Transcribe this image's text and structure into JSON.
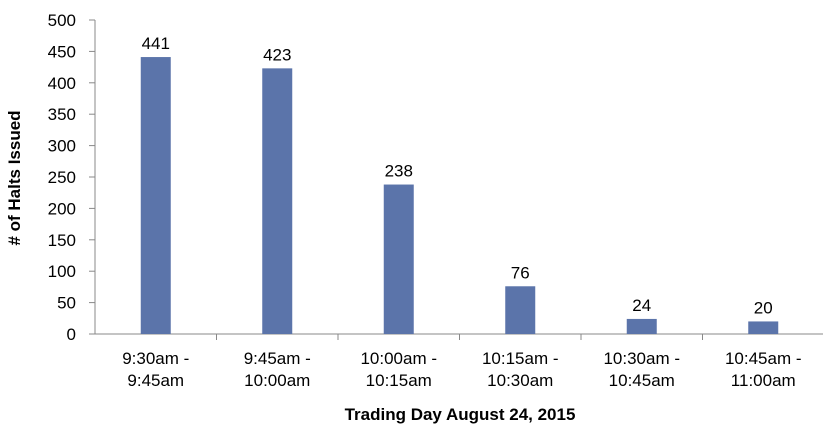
{
  "chart_data": {
    "type": "bar",
    "x_label": "Trading Day August 24, 2015",
    "y_label": "# of Halts Issued",
    "categories": [
      "9:30am -\n9:45am",
      "9:45am -\n10:00am",
      "10:00am -\n10:15am",
      "10:15am -\n10:30am",
      "10:30am -\n10:45am",
      "10:45am -\n11:00am"
    ],
    "values": [
      441,
      423,
      238,
      76,
      24,
      20
    ],
    "color": "#5b74aa",
    "ylim": [
      0,
      500
    ],
    "yticks": [
      0,
      50,
      100,
      150,
      200,
      250,
      300,
      350,
      400,
      450,
      500
    ],
    "grid": false
  }
}
